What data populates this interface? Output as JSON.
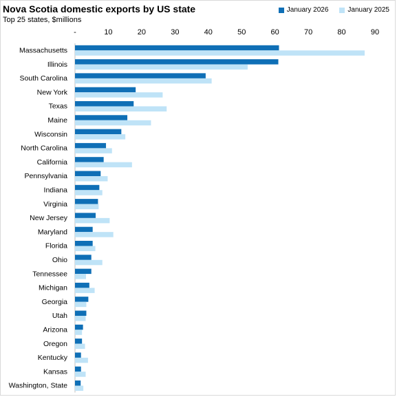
{
  "header": {
    "title": "Nova Scotia domestic exports by US state",
    "subtitle": "Top 25 states, $millions"
  },
  "colors": {
    "series_2026": "#0f6fb6",
    "series_2025": "#bfe3f7",
    "axis": "#bfbfbf"
  },
  "chart_data": {
    "type": "bar",
    "orientation": "horizontal",
    "title": "Nova Scotia domestic exports by US state",
    "subtitle": "Top 25 states, $millions",
    "xlim": [
      0,
      90
    ],
    "x_ticks": [
      0,
      10,
      20,
      30,
      40,
      50,
      60,
      70,
      80,
      90
    ],
    "x_tick_labels": [
      "-",
      "10",
      "20",
      "30",
      "40",
      "50",
      "60",
      "70",
      "80",
      "90"
    ],
    "legend_position": "top-right",
    "grid": false,
    "categories": [
      "Massachusetts",
      "Illinois",
      "South Carolina",
      "New York",
      "Texas",
      "Maine",
      "Wisconsin",
      "North Carolina",
      "California",
      "Pennsylvania",
      "Indiana",
      "Virginia",
      "New Jersey",
      "Maryland",
      "Florida",
      "Ohio",
      "Tennessee",
      "Michigan",
      "Georgia",
      "Utah",
      "Arizona",
      "Oregon",
      "Kentucky",
      "Kansas",
      "Washington, State"
    ],
    "series": [
      {
        "name": "January 2026",
        "values": [
          61.2,
          61.0,
          39.2,
          18.2,
          17.6,
          15.7,
          13.9,
          9.3,
          8.6,
          7.7,
          7.3,
          6.9,
          6.2,
          5.3,
          5.3,
          4.9,
          4.9,
          4.3,
          4.0,
          3.4,
          2.4,
          2.1,
          1.8,
          1.8,
          1.7
        ]
      },
      {
        "name": "January 2025",
        "values": [
          86.9,
          51.8,
          41.0,
          26.3,
          27.5,
          22.8,
          15.1,
          11.1,
          17.1,
          9.8,
          8.2,
          7.1,
          10.4,
          11.5,
          6.1,
          8.2,
          3.3,
          5.9,
          3.4,
          3.2,
          2.1,
          3.0,
          3.9,
          3.2,
          2.5
        ]
      }
    ]
  }
}
